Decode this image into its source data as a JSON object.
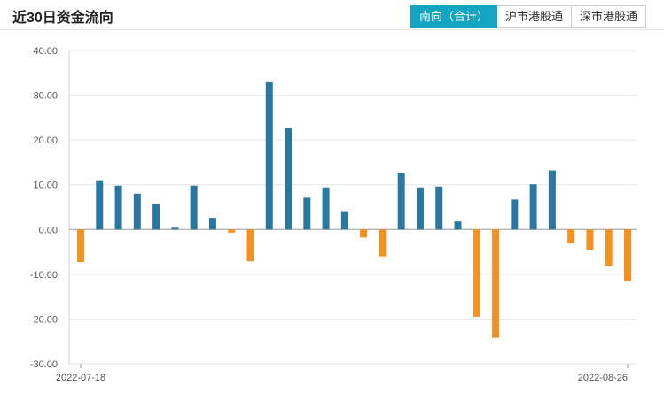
{
  "header": {
    "title": "近30日资金流向",
    "tabs": [
      {
        "label": "南向（合计）",
        "active": true
      },
      {
        "label": "沪市港股通",
        "active": false
      },
      {
        "label": "深市港股通",
        "active": false
      }
    ]
  },
  "colors": {
    "positive": "#2a78a2",
    "negative": "#f3921e",
    "tab_active": "#13a4bf",
    "grid": "#e6e6e6"
  },
  "chart_data": {
    "type": "bar",
    "title": "近30日资金流向",
    "x_tick_labels": [
      "2022-07-18",
      "2022-08-26"
    ],
    "ylim": [
      -30,
      40
    ],
    "yticks": [
      "40.00",
      "30.00",
      "20.00",
      "10.00",
      "0.00",
      "-10.00",
      "-20.00",
      "-30.00"
    ],
    "grid": true,
    "values": [
      -7.3,
      11.0,
      9.8,
      8.0,
      5.7,
      0.4,
      9.8,
      2.6,
      -0.7,
      -7.1,
      32.9,
      22.6,
      7.1,
      9.4,
      4.1,
      -1.8,
      -6.0,
      12.6,
      9.4,
      9.6,
      1.8,
      -19.5,
      -24.2,
      6.7,
      10.1,
      13.2,
      -3.1,
      -4.6,
      -8.2,
      -11.5
    ]
  }
}
